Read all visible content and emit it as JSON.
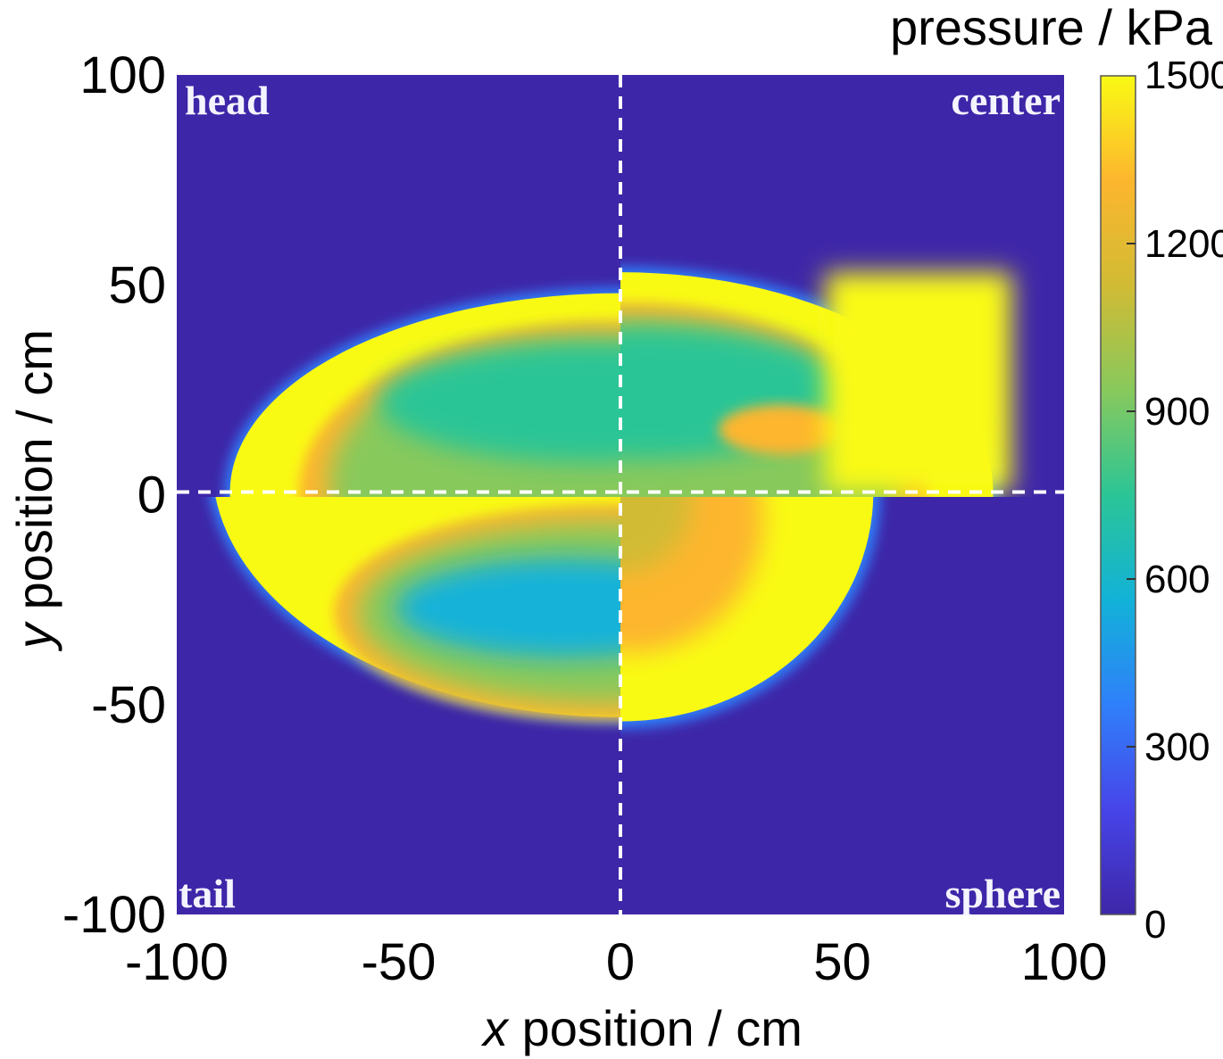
{
  "chart_data": {
    "type": "heatmap",
    "title": "",
    "xlabel": "x position / cm",
    "ylabel": "y position / cm",
    "xlabel_italic_part": "x",
    "ylabel_italic_part": "y",
    "xlim": [
      -100,
      100
    ],
    "ylim": [
      -100,
      100
    ],
    "xticks": [
      -100,
      -50,
      0,
      50,
      100
    ],
    "yticks": [
      -100,
      -50,
      0,
      50,
      100
    ],
    "xtick_labels": [
      "-100",
      "-50",
      "0",
      "50",
      "100"
    ],
    "ytick_labels": [
      "-100",
      "-50",
      "0",
      "50",
      "100"
    ],
    "colorbar": {
      "label": "pressure / kPa",
      "range": [
        0,
        1500
      ],
      "ticks": [
        0,
        300,
        600,
        900,
        1200,
        1500
      ],
      "tick_labels": [
        "0",
        "300",
        "600",
        "900",
        "1200",
        "1500"
      ],
      "colormap": "parula",
      "colors": [
        "#3e26a8",
        "#4745e9",
        "#2f80fa",
        "#12b2d8",
        "#2bc596",
        "#88c95c",
        "#d1bb34",
        "#fdb62e",
        "#f9fa14"
      ]
    },
    "background_color": "#3e26a8",
    "divider_lines": {
      "x": 0,
      "y": 0,
      "style": "dashed",
      "color": "#ffffff"
    },
    "quadrants": [
      {
        "name": "head",
        "position": "top-left",
        "outer_boundary_kPa": 1500,
        "shock_front_extent_cm": {
          "x_min": -88,
          "y_max": 48
        },
        "interior_min_kPa": 550
      },
      {
        "name": "center",
        "position": "top-right",
        "outer_boundary_kPa": 1500,
        "shock_front_extent_cm": {
          "x_max": 84,
          "y_max": 53
        },
        "interior_min_kPa": 700
      },
      {
        "name": "tail",
        "position": "bottom-left",
        "outer_boundary_kPa": 1500,
        "shock_front_extent_cm": {
          "x_min": -92,
          "y_min": -53
        },
        "interior_min_kPa": 450
      },
      {
        "name": "sphere",
        "position": "bottom-right",
        "outer_boundary_kPa": 1500,
        "shock_front_extent_cm": {
          "x_max": 57,
          "y_min": -54
        },
        "interior_min_kPa": 1150
      }
    ]
  }
}
